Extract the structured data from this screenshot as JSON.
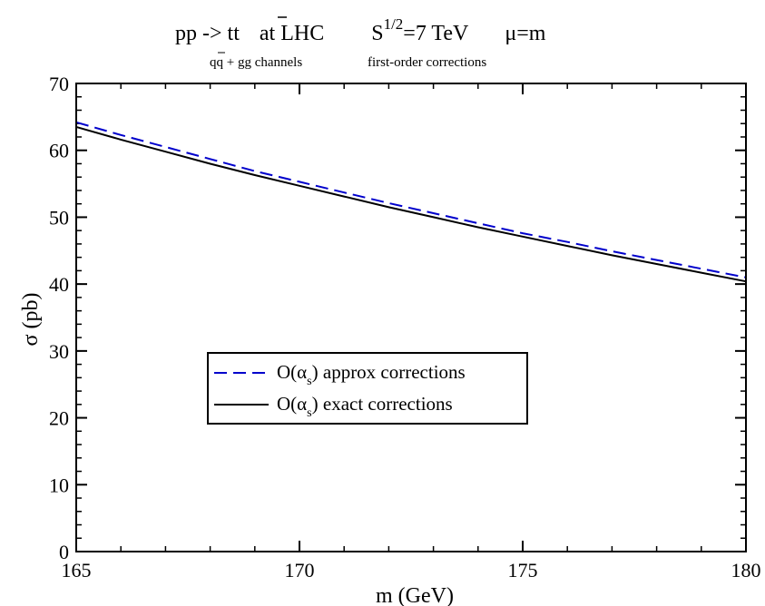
{
  "header": {
    "title_main": "pp -> t",
    "title_tbar": "t",
    "title_at": "at  LHC",
    "title_s": "S",
    "title_s_sup": "1/2",
    "title_energy": "=7 TeV",
    "title_mu": "μ=m",
    "subtitle_q": "q",
    "subtitle_qbar": "q",
    "subtitle_channels": " + gg channels",
    "subtitle_order": "first-order corrections"
  },
  "chart_data": {
    "type": "line",
    "xlabel": "m (GeV)",
    "ylabel": "σ (pb)",
    "xlim": [
      165,
      180
    ],
    "ylim": [
      0,
      70
    ],
    "x_ticks": [
      "165",
      "170",
      "175",
      "180"
    ],
    "y_ticks": [
      "0",
      "10",
      "20",
      "30",
      "40",
      "50",
      "60",
      "70"
    ],
    "grid": false,
    "legend_position": "center-left",
    "series": [
      {
        "name_prefix": "O(α",
        "name_sub": "s",
        "name_suffix": ") approx corrections",
        "color": "#0000cc",
        "style": "dashed",
        "x": [
          165,
          166,
          167,
          168,
          169,
          170,
          171,
          172,
          173,
          174,
          175,
          176,
          177,
          178,
          179,
          180
        ],
        "values": [
          64.2,
          62.3,
          60.5,
          58.7,
          56.9,
          55.3,
          53.7,
          52.1,
          50.6,
          49.1,
          47.6,
          46.3,
          44.9,
          43.6,
          42.3,
          41.0
        ]
      },
      {
        "name_prefix": "O(α",
        "name_sub": "s",
        "name_suffix": ")  exact corrections",
        "color": "#000000",
        "style": "solid",
        "x": [
          165,
          166,
          167,
          168,
          169,
          170,
          171,
          172,
          173,
          174,
          175,
          176,
          177,
          178,
          179,
          180
        ],
        "values": [
          63.5,
          61.6,
          59.8,
          58.0,
          56.3,
          54.7,
          53.1,
          51.5,
          50.0,
          48.5,
          47.1,
          45.7,
          44.3,
          43.0,
          41.7,
          40.4
        ]
      }
    ]
  }
}
